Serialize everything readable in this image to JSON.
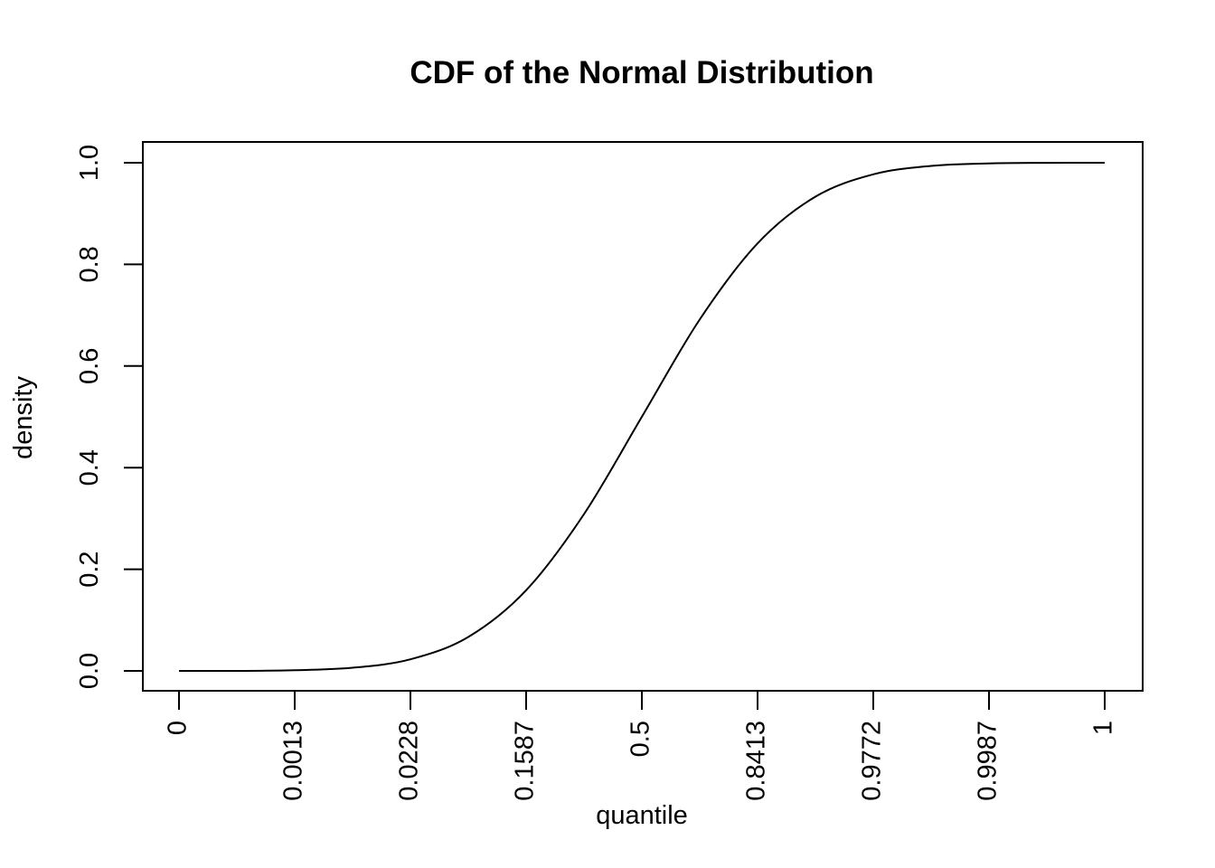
{
  "chart_data": {
    "type": "line",
    "title": "CDF of the Normal Distribution",
    "xlabel": "quantile",
    "ylabel": "density",
    "x_ticks": [
      "0",
      "0.0013",
      "0.0228",
      "0.1587",
      "0.5",
      "0.8413",
      "0.9772",
      "0.9987",
      "1"
    ],
    "y_ticks": [
      "0.0",
      "0.2",
      "0.4",
      "0.6",
      "0.8",
      "1.0"
    ],
    "ylim": [
      0,
      1
    ],
    "grid": false,
    "legend": "none",
    "series": [
      {
        "x": [
          "0",
          "",
          "0.0013",
          "",
          "0.0228",
          "",
          "0.1587",
          "",
          "0.5",
          "",
          "0.8413",
          "",
          "0.9772",
          "",
          "0.9987",
          "",
          "1"
        ],
        "values": [
          0.0,
          0.0,
          0.0013,
          0.0062,
          0.0228,
          0.0668,
          0.1587,
          0.3085,
          0.5,
          0.6915,
          0.8413,
          0.9332,
          0.9772,
          0.9938,
          0.9987,
          0.9998,
          1.0
        ]
      }
    ]
  }
}
